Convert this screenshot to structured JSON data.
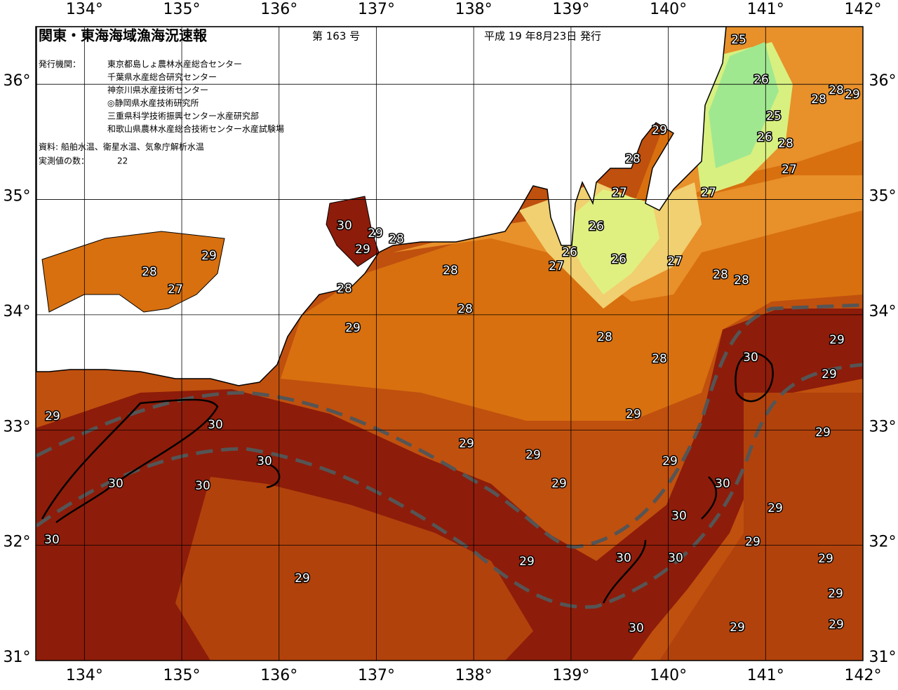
{
  "header": {
    "title": "関東・東海海域漁海況速報",
    "issue": "第 163 号",
    "date": "平成 19 年8月23日 発行"
  },
  "info": {
    "publisher_label": "発行機関：",
    "publishers": [
      "東京都島しょ農林水産総合センター",
      "千葉県水産総合研究センター",
      "神奈川県水産技術センター",
      "◎静岡県水産技術研究所",
      "三重県科学技術振興センター水産研究部",
      "和歌山県農林水産総合技術センター水産試験場"
    ],
    "source": "資料: 船舶水温、衛星水温、気象庁解析水温",
    "count_label": "実測値の数：",
    "count": 22
  },
  "map": {
    "lonlim": [
      133.5,
      142
    ],
    "latlim": [
      31,
      36.5
    ],
    "grid": true,
    "lonticks": [
      {
        "value": 134,
        "label": "134°"
      },
      {
        "value": 135,
        "label": "135°"
      },
      {
        "value": 136,
        "label": "136°"
      },
      {
        "value": 137,
        "label": "137°"
      },
      {
        "value": 138,
        "label": "138°"
      },
      {
        "value": 139,
        "label": "139°"
      },
      {
        "value": 140,
        "label": "140°"
      },
      {
        "value": 141,
        "label": "141°"
      },
      {
        "value": 142,
        "label": "142°"
      }
    ],
    "latticks": [
      {
        "value": 31,
        "label": "31°"
      },
      {
        "value": 32,
        "label": "32°"
      },
      {
        "value": 33,
        "label": "33°"
      },
      {
        "value": 34,
        "label": "34°"
      },
      {
        "value": 35,
        "label": "35°"
      },
      {
        "value": 36,
        "label": "36°"
      }
    ],
    "isotherm_labels": [
      25,
      26,
      28,
      29,
      28,
      25,
      29,
      26,
      28,
      28,
      27,
      27,
      27,
      30,
      29,
      28,
      26,
      29,
      29,
      26,
      26,
      27,
      27,
      28,
      28,
      28,
      28,
      27,
      28,
      28,
      29,
      28,
      29,
      30,
      28,
      29,
      29,
      29,
      30,
      29,
      29,
      29,
      30,
      29,
      30,
      30,
      29,
      30,
      29,
      30,
      30,
      29,
      29,
      30,
      30,
      29,
      29,
      29,
      30,
      29,
      29
    ]
  }
}
